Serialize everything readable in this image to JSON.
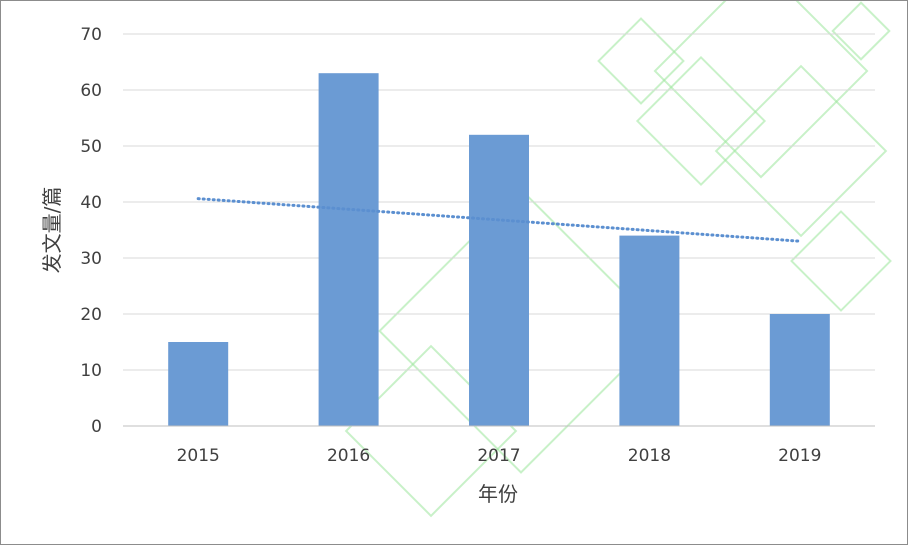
{
  "chart_data": {
    "type": "bar",
    "title": "",
    "xlabel": "年份",
    "ylabel": "发文量/篇",
    "categories": [
      "2015",
      "2016",
      "2017",
      "2018",
      "2019"
    ],
    "series": [
      {
        "values": [
          15,
          63,
          52,
          34,
          20
        ]
      }
    ],
    "trendline": {
      "type": "linear",
      "style": "dotted",
      "start": 40.6,
      "end": 33.0
    },
    "ylim": [
      0,
      70
    ],
    "yticks": [
      "0",
      "10",
      "20",
      "30",
      "40",
      "50",
      "60",
      "70"
    ],
    "grid": true,
    "legend": "none",
    "colors": {
      "bar": "#6b9bd4",
      "trendline": "#5b8fd0",
      "gridline": "#d9d9d9",
      "axis": "#bfbfbf",
      "text": "#404040",
      "watermark": "#9be59b"
    }
  }
}
